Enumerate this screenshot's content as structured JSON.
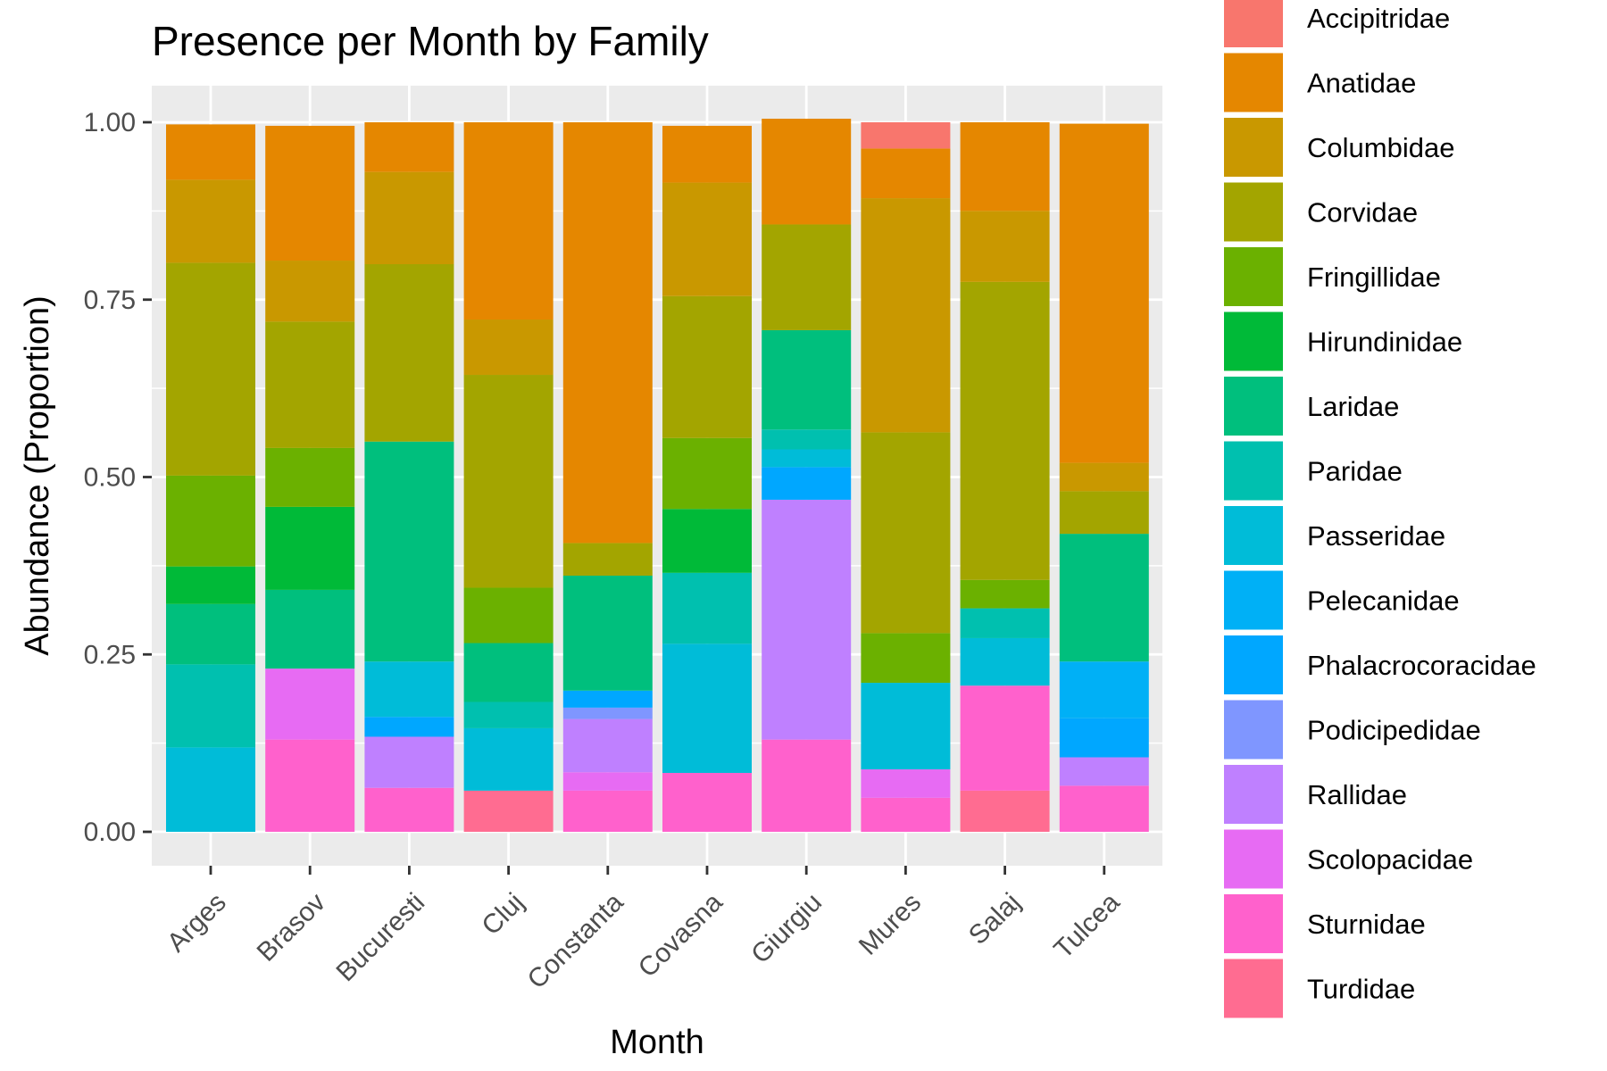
{
  "chart_data": {
    "type": "bar",
    "stacked": true,
    "title": "Presence per Month by Family",
    "xlabel": "Month",
    "ylabel": "Abundance (Proportion)",
    "ylim": [
      0,
      1
    ],
    "y_ticks": [
      "0.00",
      "0.25",
      "0.50",
      "0.75",
      "1.00"
    ],
    "grid": true,
    "legend_position": "right",
    "categories": [
      "Arges",
      "Brasov",
      "Bucuresti",
      "Cluj",
      "Constanta",
      "Covasna",
      "Giurgiu",
      "Mures",
      "Salaj",
      "Tulcea"
    ],
    "series": [
      {
        "name": "Accipitridae",
        "color": "#F8766D",
        "values": [
          0,
          0,
          0,
          0,
          0,
          0,
          0,
          0.037,
          0,
          0
        ]
      },
      {
        "name": "Anatidae",
        "color": "#E58700",
        "values": [
          0.078,
          0.19,
          0.07,
          0.278,
          0.593,
          0.08,
          0.149,
          0.07,
          0.125,
          0.478
        ]
      },
      {
        "name": "Columbidae",
        "color": "#C99800",
        "values": [
          0.117,
          0.086,
          0.13,
          0.078,
          0,
          0.16,
          0,
          0.33,
          0.1,
          0.04
        ]
      },
      {
        "name": "Corvidae",
        "color": "#A3A500",
        "values": [
          0.3,
          0.178,
          0.25,
          0.3,
          0.046,
          0.2,
          0.149,
          0.283,
          0.42,
          0.06
        ]
      },
      {
        "name": "Fringillidae",
        "color": "#6BB100",
        "values": [
          0.128,
          0.083,
          0,
          0.078,
          0,
          0.1,
          0,
          0.07,
          0.04,
          0
        ]
      },
      {
        "name": "Hirundinidae",
        "color": "#00BA38",
        "values": [
          0.053,
          0.117,
          0,
          0,
          0,
          0.09,
          0,
          0,
          0,
          0
        ]
      },
      {
        "name": "Laridae",
        "color": "#00BF7D",
        "values": [
          0.085,
          0.111,
          0.31,
          0.083,
          0.162,
          0,
          0.14,
          0,
          0,
          0.18
        ]
      },
      {
        "name": "Paridae",
        "color": "#00C0AF",
        "values": [
          0.117,
          0,
          0,
          0.037,
          0,
          0.1,
          0.028,
          0,
          0.042,
          0
        ]
      },
      {
        "name": "Passeridae",
        "color": "#00BCD8",
        "values": [
          0.119,
          0,
          0.078,
          0.088,
          0,
          0.182,
          0.025,
          0.122,
          0.067,
          0
        ]
      },
      {
        "name": "Pelecanidae",
        "color": "#00B0F6",
        "values": [
          0,
          0,
          0,
          0,
          0,
          0,
          0,
          0,
          0,
          0.08
        ]
      },
      {
        "name": "Phalacrocoracidae",
        "color": "#00A7FF",
        "values": [
          0,
          0,
          0.028,
          0,
          0.024,
          0,
          0.046,
          0,
          0,
          0.055
        ]
      },
      {
        "name": "Podicipedidae",
        "color": "#7F96FF",
        "values": [
          0,
          0,
          0,
          0,
          0.016,
          0,
          0,
          0,
          0,
          0
        ]
      },
      {
        "name": "Rallidae",
        "color": "#BF80FF",
        "values": [
          0,
          0,
          0.072,
          0,
          0.075,
          0,
          0.338,
          0,
          0,
          0.04
        ]
      },
      {
        "name": "Scolopacidae",
        "color": "#E76BF3",
        "values": [
          0,
          0.1,
          0,
          0,
          0.026,
          0,
          0,
          0.04,
          0,
          0
        ]
      },
      {
        "name": "Sturnidae",
        "color": "#FF61CC",
        "values": [
          0,
          0.13,
          0.062,
          0,
          0.058,
          0.083,
          0.13,
          0.048,
          0.148,
          0.065
        ]
      },
      {
        "name": "Turdidae",
        "color": "#FF6C91",
        "values": [
          0,
          0,
          0,
          0.058,
          0,
          0,
          0,
          0,
          0.058,
          0
        ]
      }
    ]
  }
}
